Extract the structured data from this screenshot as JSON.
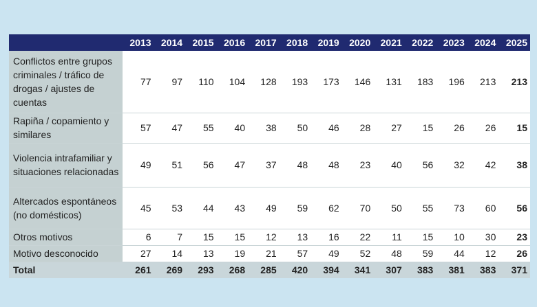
{
  "table": {
    "years": [
      2013,
      2014,
      2015,
      2016,
      2017,
      2018,
      2019,
      2020,
      2021,
      2022,
      2023,
      2024,
      2025
    ],
    "rows": [
      {
        "label": "Conflictos entre grupos criminales / tráfico de drogas / ajustes de cuentas",
        "values": [
          77,
          97,
          110,
          104,
          128,
          193,
          173,
          146,
          131,
          183,
          196,
          213,
          213
        ]
      },
      {
        "label": "Rapiña / copamiento y similares",
        "values": [
          57,
          47,
          55,
          40,
          38,
          50,
          46,
          28,
          27,
          15,
          26,
          26,
          15
        ]
      },
      {
        "label": "Violencia intrafamiliar y situaciones relacionadas",
        "values": [
          49,
          51,
          56,
          47,
          37,
          48,
          48,
          23,
          40,
          56,
          32,
          42,
          38
        ]
      },
      {
        "label": "Altercados espontáneos (no domésticos)",
        "values": [
          45,
          53,
          44,
          43,
          49,
          59,
          62,
          70,
          50,
          55,
          73,
          60,
          56
        ]
      },
      {
        "label": "Otros motivos",
        "values": [
          6,
          7,
          15,
          15,
          12,
          13,
          16,
          22,
          11,
          15,
          10,
          30,
          23
        ]
      },
      {
        "label": "Motivo desconocido",
        "values": [
          27,
          14,
          13,
          19,
          21,
          57,
          49,
          52,
          48,
          59,
          44,
          12,
          26
        ]
      }
    ],
    "total": {
      "label": "Total",
      "values": [
        261,
        269,
        293,
        268,
        285,
        420,
        394,
        341,
        307,
        383,
        381,
        383,
        371
      ]
    }
  }
}
